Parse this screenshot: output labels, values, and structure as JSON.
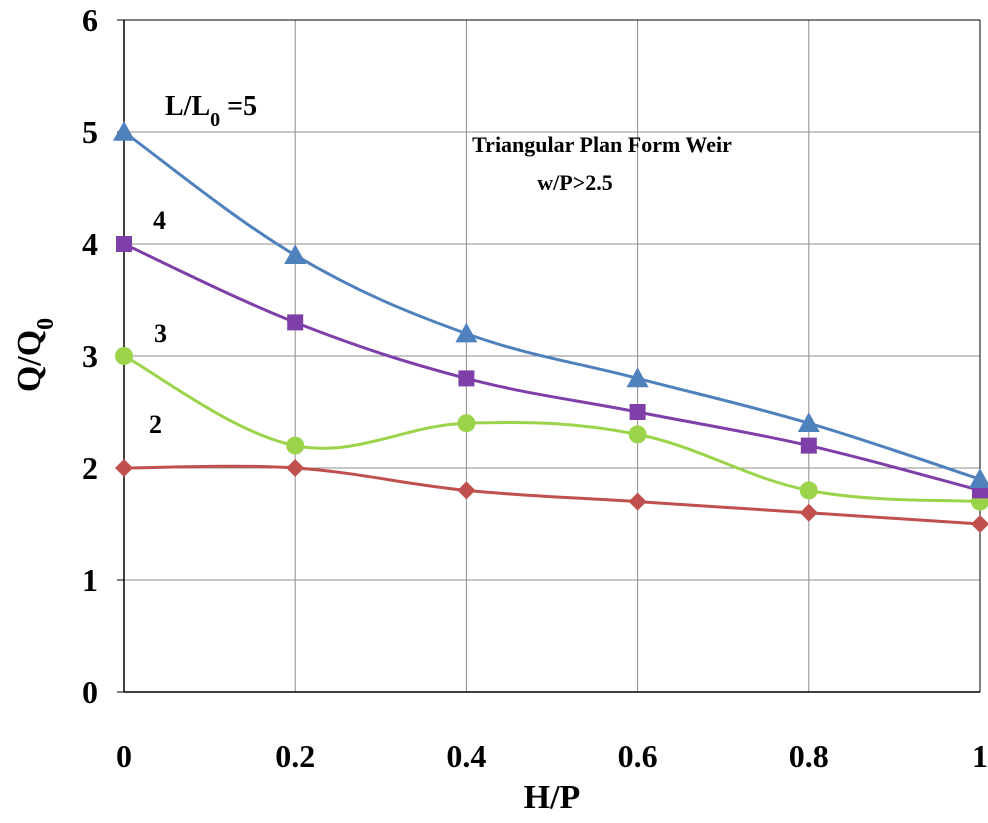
{
  "chart_data": {
    "type": "line",
    "title": "Triangular Plan Form  Weir",
    "subtitle": "w/P>2.5",
    "xlabel": "H/P",
    "ylabel_main": "Q/Q",
    "ylabel_sub": "0",
    "xlim": [
      0,
      1
    ],
    "ylim": [
      0,
      6
    ],
    "x_ticks": [
      0,
      0.2,
      0.4,
      0.6,
      0.8,
      1
    ],
    "x_tick_labels": [
      "0",
      "0.2",
      "0.4",
      "0.6",
      "0.8",
      "1"
    ],
    "y_ticks": [
      0,
      1,
      2,
      3,
      4,
      5,
      6
    ],
    "y_tick_labels": [
      "0",
      "1",
      "2",
      "3",
      "4",
      "5",
      "6"
    ],
    "grid": true,
    "x": [
      0,
      0.2,
      0.4,
      0.6,
      0.8,
      1
    ],
    "series": [
      {
        "name": "L/L0 =5",
        "color": "#4F81BD",
        "marker": "triangle",
        "values": [
          5.0,
          3.9,
          3.2,
          2.8,
          2.4,
          1.9
        ]
      },
      {
        "name": "4",
        "color": "#7F3FA8",
        "marker": "square",
        "values": [
          4.0,
          3.3,
          2.8,
          2.5,
          2.2,
          1.8
        ]
      },
      {
        "name": "3",
        "color": "#9BD34B",
        "marker": "circle",
        "values": [
          3.0,
          2.2,
          2.4,
          2.3,
          1.8,
          1.7
        ]
      },
      {
        "name": "2",
        "color": "#C0504D",
        "marker": "diamond",
        "values": [
          2.0,
          2.0,
          1.8,
          1.7,
          1.6,
          1.5
        ]
      }
    ],
    "labels": {
      "s5_main": "L/L",
      "s5_sub": "0",
      "s5_tail": " =5",
      "s4": "4",
      "s3": "3",
      "s2": "2"
    }
  }
}
